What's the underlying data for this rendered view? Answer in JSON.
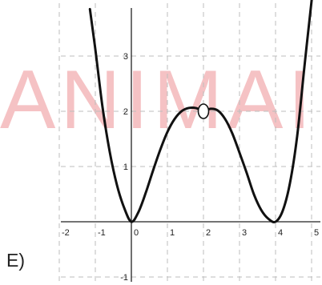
{
  "option_label": "E)",
  "watermark": "ANIMAI",
  "chart_data": {
    "type": "line",
    "title": "",
    "xlabel": "",
    "ylabel": "",
    "xlim": [
      -2,
      5
    ],
    "ylim": [
      -1.6,
      3.8
    ],
    "grid": true,
    "x_ticks": [
      {
        "value": -2,
        "label": "-2"
      },
      {
        "value": -1,
        "label": "-1"
      },
      {
        "value": 0,
        "label": "0"
      },
      {
        "value": 1,
        "label": "1"
      },
      {
        "value": 2,
        "label": "2"
      },
      {
        "value": 3,
        "label": "3"
      },
      {
        "value": 4,
        "label": "4"
      },
      {
        "value": 5,
        "label": "5"
      }
    ],
    "y_ticks": [
      {
        "value": -1,
        "label": "-1"
      },
      {
        "value": 1,
        "label": "1"
      },
      {
        "value": 2,
        "label": "2"
      },
      {
        "value": 3,
        "label": "3"
      }
    ],
    "series": [
      {
        "x": [
          -1.15,
          -1.0,
          -0.8,
          -0.6,
          -0.4,
          -0.2,
          0,
          0.2,
          0.4,
          0.6,
          0.8,
          1.0,
          1.2,
          1.4,
          1.6,
          1.8,
          2.0,
          2.2,
          2.4,
          2.6,
          2.8,
          3.0,
          3.2,
          3.4,
          3.6,
          3.8,
          4.0,
          4.2,
          4.4,
          4.6,
          4.8,
          5.0,
          5.15
        ],
        "y": [
          3.85,
          3.125,
          2.074,
          1.264,
          0.665,
          0.2525,
          0,
          0.1805,
          0.5265,
          0.9245,
          1.3005,
          1.625,
          1.8605,
          2.0045,
          2.0605,
          2.0565,
          2.0,
          2.0445,
          2.0125,
          1.8605,
          1.6,
          1.25,
          0.884,
          0.496,
          0.216,
          0.054,
          0,
          0.2,
          0.7,
          1.55,
          2.8,
          4.0,
          4.8
        ],
        "color": "#111111"
      }
    ],
    "annotations": [
      {
        "type": "open-circle",
        "x": 2,
        "y": 2
      }
    ],
    "colors": {
      "curve": "#111111",
      "grid": "#bdbdbd",
      "axis": "#222222",
      "watermark": "#f2aeb1"
    }
  }
}
